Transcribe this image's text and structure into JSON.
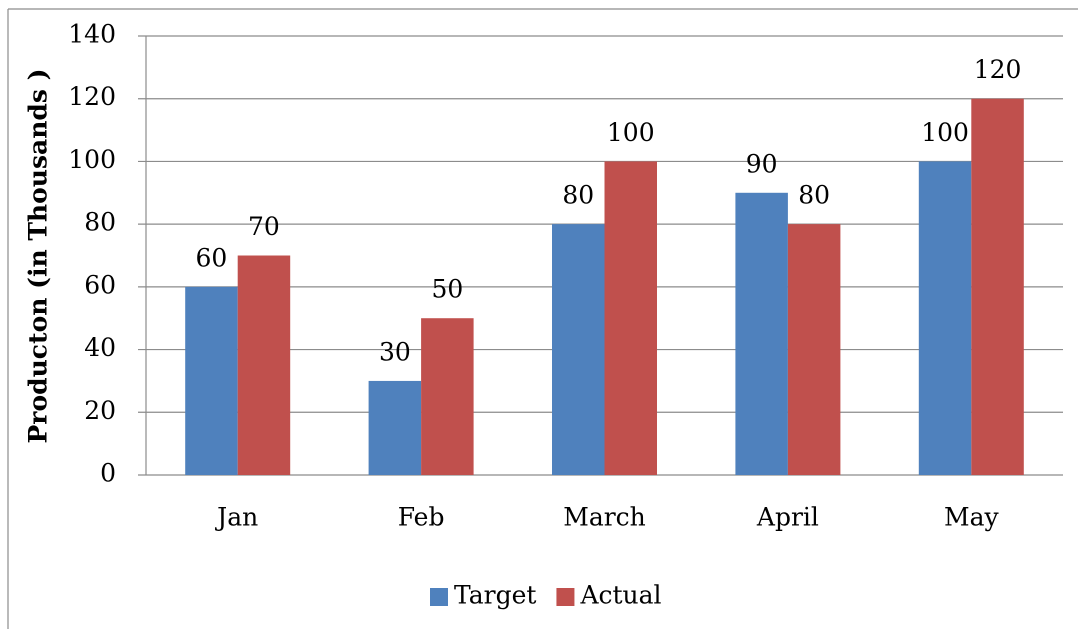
{
  "chart_data": {
    "type": "bar",
    "y_label": "Producton (in Thousands )",
    "categories": [
      "Jan",
      "Feb",
      "March",
      "April",
      "May"
    ],
    "series": [
      {
        "name": "Target",
        "color": "#4f81bd",
        "values": [
          60,
          30,
          80,
          90,
          100
        ]
      },
      {
        "name": "Actual",
        "color": "#c0504d",
        "values": [
          70,
          50,
          100,
          80,
          120
        ]
      }
    ],
    "ylim": [
      0,
      140
    ],
    "yticks": [
      0,
      20,
      40,
      60,
      80,
      100,
      120,
      140
    ],
    "grid": true,
    "legend": "bottom"
  }
}
